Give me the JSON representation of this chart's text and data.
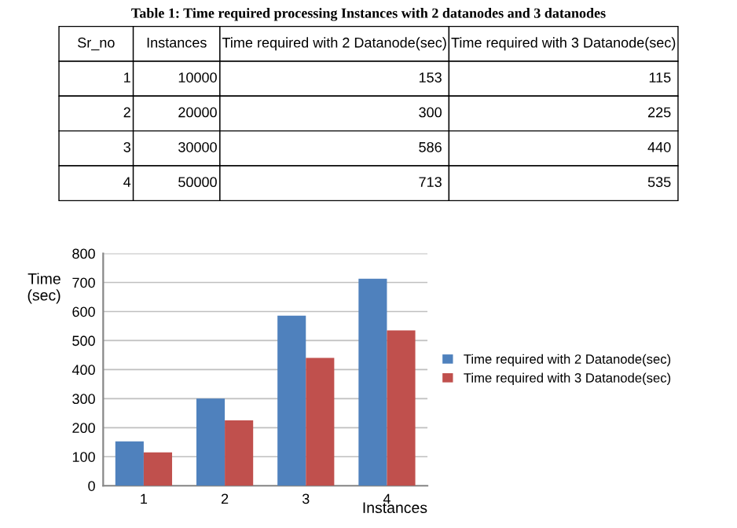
{
  "chart_data": {
    "type": "bar",
    "title": "Table 1: Time required processing Instances with 2 datanodes and 3 datanodes",
    "categories": [
      "1",
      "2",
      "3",
      "4"
    ],
    "series": [
      {
        "name": "Time required with 2 Datanode(sec)",
        "color": "#4f81bd",
        "values": [
          153,
          300,
          586,
          713
        ]
      },
      {
        "name": "Time required with 3 Datanode(sec)",
        "color": "#c0504d",
        "values": [
          115,
          225,
          440,
          535
        ]
      }
    ],
    "ylabel": "Time\n(sec)",
    "xlabel": "Instances",
    "annotations": [
      "Sr_no",
      "Instances",
      "Time required with 2 Datanode(sec)",
      "Time required with 3 Datanode(sec)",
      "1",
      "10000",
      "153",
      "115",
      "2",
      "20000",
      "300",
      "225",
      "3",
      "30000",
      "586",
      "440",
      "4",
      "50000",
      "713",
      "535"
    ],
    "ylim": [
      0,
      800
    ],
    "yticks": [
      0,
      100,
      200,
      300,
      400,
      500,
      600,
      700,
      800
    ],
    "grid": "y",
    "legend": "right"
  }
}
